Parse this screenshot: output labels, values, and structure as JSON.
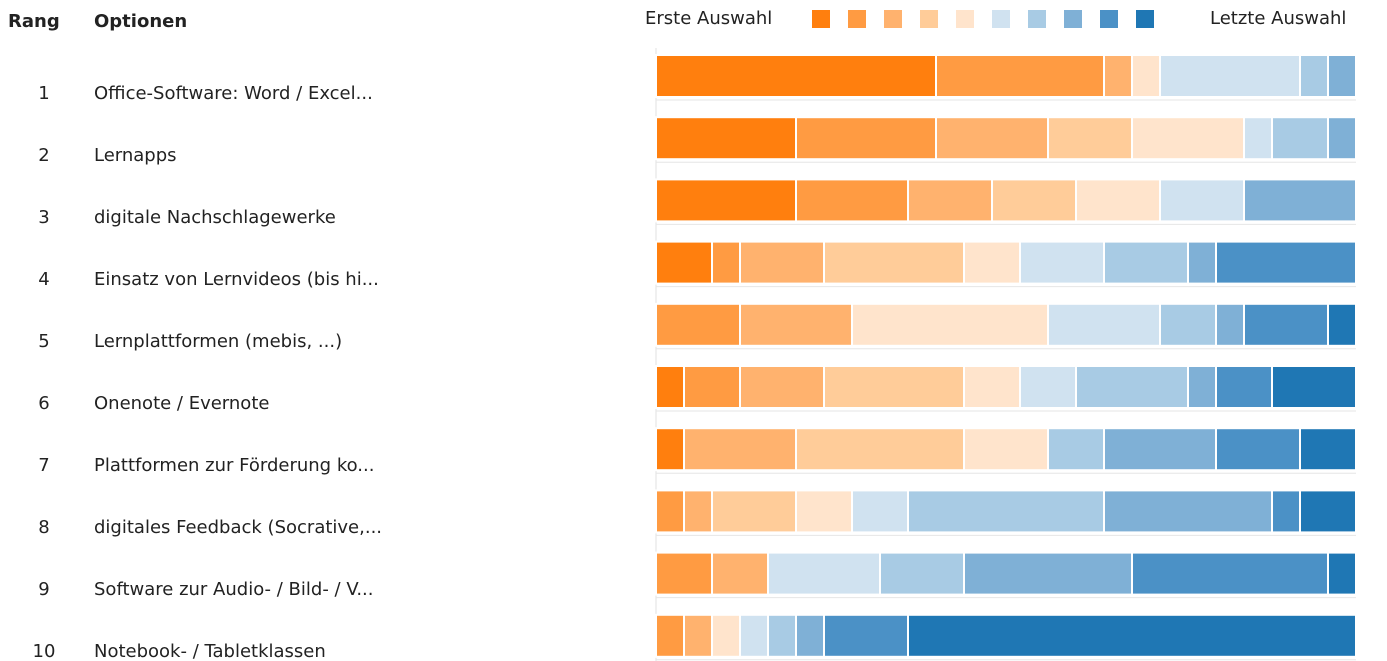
{
  "chart_data": {
    "type": "ranking",
    "header": {
      "rank": "Rang",
      "options": "Optionen"
    },
    "legend": {
      "start": "Erste Auswahl",
      "end": "Letzte Auswahl"
    },
    "ranks": [
      1,
      2,
      3,
      4,
      5,
      6,
      7,
      8,
      9,
      10
    ],
    "categories": [
      "Office-Software: Word / Excel...",
      "Lernapps",
      "digitale Nachschlagewerke",
      "Einsatz von Lernvideos (bis hi...",
      "Lernplattformen (mebis, ...)",
      "Onenote / Evernote",
      "Plattformen zur Förderung ko...",
      "digitales Feedback (Socrative,...",
      "Software zur Audio- / Bild- / V...",
      "Notebook- / Tabletklassen"
    ],
    "xlim": [
      0,
      25
    ],
    "series": [
      {
        "color": "#ff7f0e",
        "values": [
          10,
          5,
          5,
          2,
          0,
          1,
          1,
          0,
          0,
          0
        ]
      },
      {
        "color": "#ff9b42",
        "values": [
          6,
          5,
          4,
          1,
          3,
          2,
          0,
          1,
          2,
          1
        ]
      },
      {
        "color": "#ffb26e",
        "values": [
          1,
          4,
          3,
          3,
          4,
          3,
          4,
          1,
          2,
          1
        ]
      },
      {
        "color": "#ffcc99",
        "values": [
          0,
          3,
          3,
          5,
          0,
          5,
          6,
          3,
          0,
          0
        ]
      },
      {
        "color": "#ffe4cc",
        "values": [
          1,
          4,
          3,
          2,
          7,
          2,
          3,
          2,
          0,
          1
        ]
      },
      {
        "color": "#d0e2f0",
        "values": [
          5,
          1,
          3,
          3,
          4,
          2,
          0,
          2,
          4,
          1
        ]
      },
      {
        "color": "#a8cbe4",
        "values": [
          1,
          2,
          0,
          3,
          2,
          4,
          2,
          7,
          3,
          1
        ]
      },
      {
        "color": "#7fb0d6",
        "values": [
          1,
          1,
          4,
          1,
          1,
          1,
          4,
          6,
          6,
          1
        ]
      },
      {
        "color": "#4b91c6",
        "values": [
          0,
          0,
          0,
          5,
          3,
          2,
          3,
          1,
          7,
          3
        ]
      },
      {
        "color": "#1f77b4",
        "values": [
          0,
          0,
          0,
          0,
          1,
          3,
          2,
          2,
          1,
          16
        ]
      }
    ]
  }
}
